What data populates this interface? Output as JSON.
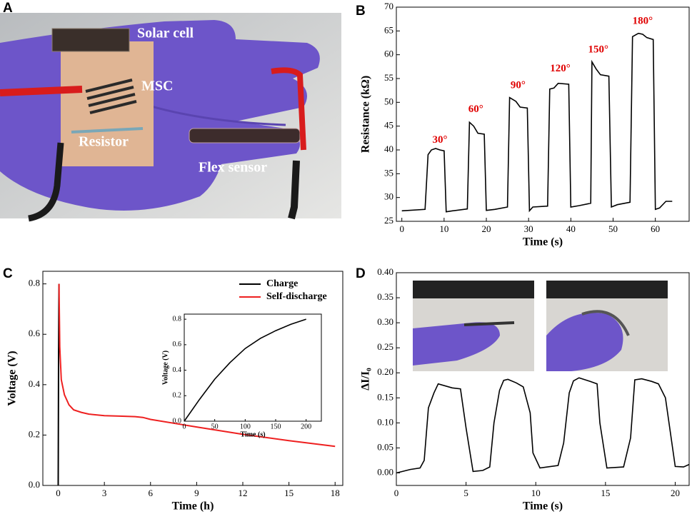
{
  "photo": {
    "label": "A",
    "labels": [
      "Solar cell",
      "MSC",
      "Resistor",
      "Flex sensor"
    ]
  },
  "chart_data": [
    {
      "type": "line",
      "panel_label": "B",
      "xlabel": "Time (s)",
      "ylabel": "Resistance (kΩ)",
      "x": [
        0,
        5.5,
        6.2,
        7,
        8,
        9,
        10,
        10.5,
        12,
        15.5,
        16,
        17,
        18,
        19.5,
        20,
        22,
        25,
        25.5,
        27,
        28,
        29.7,
        30.2,
        31,
        34.5,
        35,
        36,
        37,
        39.5,
        40,
        42,
        44.7,
        45,
        46,
        47,
        49,
        49.6,
        51,
        54,
        54.6,
        56,
        57,
        58,
        59.5,
        60,
        61,
        62.5,
        64
      ],
      "values": [
        27.2,
        27.5,
        39,
        40,
        40.3,
        40,
        39.8,
        27,
        27.2,
        27.6,
        45.8,
        45,
        43.5,
        43.3,
        27.3,
        27.5,
        28,
        51,
        50.2,
        49,
        48.8,
        27.2,
        28,
        28.2,
        52.8,
        53,
        54,
        53.8,
        28,
        28.3,
        28.8,
        58.5,
        57,
        55.8,
        55.5,
        28,
        28.5,
        29,
        63.8,
        64.5,
        64.3,
        63.6,
        63.2,
        27.5,
        27.8,
        29.2,
        29.2
      ],
      "color": "#000000",
      "annotations": [
        "30°",
        "60°",
        "90°",
        "120°",
        "150°",
        "180°"
      ],
      "annotation_color": "#e00000",
      "xlim": [
        -1.3,
        68
      ],
      "xticks": [
        0,
        10,
        20,
        30,
        40,
        50,
        60
      ],
      "ylim": [
        25,
        70
      ],
      "yticks": [
        25,
        30,
        35,
        40,
        45,
        50,
        55,
        60,
        65,
        70
      ]
    },
    {
      "type": "line",
      "panel_label": "C",
      "xlabel": "Time (h)",
      "ylabel": "Voltage (V)",
      "series": [
        {
          "name": "Charge",
          "color": "#000000",
          "x": [
            0,
            0.02,
            0.05
          ],
          "values": [
            0,
            0.5,
            0.8
          ]
        },
        {
          "name": "Self-discharge",
          "color": "#ee2020",
          "x": [
            0.05,
            0.1,
            0.2,
            0.4,
            0.7,
            1,
            1.5,
            2,
            3,
            4,
            5,
            5.5,
            6,
            9,
            12,
            15,
            18
          ],
          "values": [
            0.8,
            0.55,
            0.42,
            0.36,
            0.32,
            0.3,
            0.29,
            0.283,
            0.277,
            0.275,
            0.273,
            0.27,
            0.262,
            0.232,
            0.203,
            0.178,
            0.155
          ]
        }
      ],
      "legend": "upper right",
      "xlim": [
        -1,
        18.5
      ],
      "xticks": [
        0,
        3,
        6,
        9,
        12,
        15,
        18
      ],
      "ylim": [
        0,
        0.85
      ],
      "yticks": [
        {
          "value": 0,
          "label": "0.0"
        },
        0.2,
        0.4,
        0.6,
        0.8
      ]
    },
    {
      "type": "line",
      "xlabel": "Time (s)",
      "ylabel": "Voltage (V)",
      "x": [
        0,
        25,
        50,
        75,
        100,
        125,
        150,
        175,
        200
      ],
      "values": [
        0,
        0.17,
        0.33,
        0.46,
        0.57,
        0.65,
        0.71,
        0.76,
        0.8
      ],
      "color": "#000000",
      "xlim": [
        0,
        225
      ],
      "xticks": [
        0,
        50,
        100,
        150,
        200
      ],
      "ylim": [
        0,
        0.84
      ],
      "yticks": [
        {
          "value": 0,
          "label": "0.0"
        },
        0.2,
        0.4,
        0.6,
        0.8
      ]
    },
    {
      "type": "line",
      "panel_label": "D",
      "xlabel": "Time (s)",
      "ylabel": "ΔI/I₀",
      "x": [
        0,
        1,
        1.7,
        2,
        2.3,
        2.7,
        3,
        4,
        4.6,
        5,
        5.5,
        6.2,
        6.7,
        7,
        7.4,
        7.7,
        8,
        8.6,
        9.1,
        9.6,
        9.8,
        10.3,
        11.6,
        12,
        12.4,
        12.7,
        13.1,
        13.9,
        14.4,
        14.6,
        15.1,
        16.3,
        16.8,
        17.1,
        17.6,
        18.3,
        18.8,
        19.3,
        20,
        20.6,
        21
      ],
      "values": [
        0,
        0.007,
        0.01,
        0.025,
        0.13,
        0.16,
        0.178,
        0.17,
        0.168,
        0.09,
        0.003,
        0.005,
        0.012,
        0.1,
        0.165,
        0.185,
        0.187,
        0.18,
        0.172,
        0.12,
        0.04,
        0.01,
        0.015,
        0.06,
        0.16,
        0.184,
        0.19,
        0.183,
        0.178,
        0.1,
        0.01,
        0.012,
        0.07,
        0.186,
        0.188,
        0.183,
        0.178,
        0.15,
        0.013,
        0.012,
        0.017
      ],
      "color": "#000000",
      "xlim": [
        0,
        21
      ],
      "xticks": [
        0,
        5,
        10,
        15,
        20
      ],
      "ylim": [
        -0.025,
        0.4
      ],
      "yticks": [
        {
          "value": 0,
          "label": "0.00"
        },
        {
          "value": 0.05,
          "label": "0.05"
        },
        {
          "value": 0.1,
          "label": "0.10"
        },
        {
          "value": 0.15,
          "label": "0.15"
        },
        {
          "value": 0.2,
          "label": "0.20"
        },
        {
          "value": 0.25,
          "label": "0.25"
        },
        {
          "value": 0.3,
          "label": "0.30"
        },
        {
          "value": 0.35,
          "label": "0.35"
        },
        {
          "value": 0.4,
          "label": "0.40"
        }
      ]
    }
  ]
}
